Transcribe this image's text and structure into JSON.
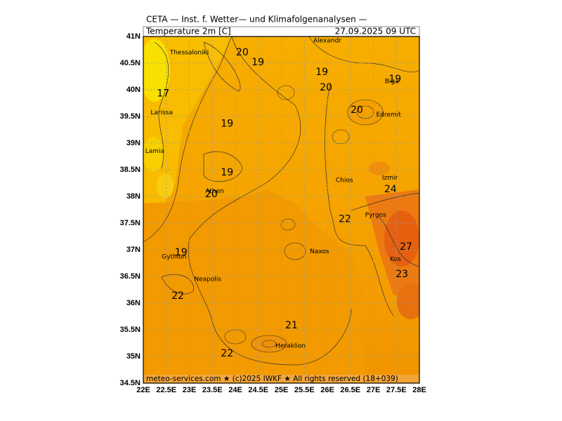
{
  "header": {
    "title": "CETA — Inst. f. Wetter— und Klimafolgenanalysen —",
    "field": "Temperature 2m [C]",
    "time": "27.09.2025 09 UTC"
  },
  "footer": "meteo-services.com ★ (c)2025 IWKF ★ All rights reserved (18+039)",
  "map": {
    "xlim": [
      22,
      28
    ],
    "ylim": [
      34.5,
      41
    ],
    "xticks": [
      {
        "value": 22,
        "label": "22E"
      },
      {
        "value": 22.5,
        "label": "22.5E"
      },
      {
        "value": 23,
        "label": "23E"
      },
      {
        "value": 23.5,
        "label": "23.5E"
      },
      {
        "value": 24,
        "label": "24E"
      },
      {
        "value": 24.5,
        "label": "24.5E"
      },
      {
        "value": 25,
        "label": "25E"
      },
      {
        "value": 25.5,
        "label": "25.5E"
      },
      {
        "value": 26,
        "label": "26E"
      },
      {
        "value": 26.5,
        "label": "26.5E"
      },
      {
        "value": 27,
        "label": "27E"
      },
      {
        "value": 27.5,
        "label": "27.5E"
      },
      {
        "value": 28,
        "label": "28E"
      }
    ],
    "yticks": [
      {
        "value": 41,
        "label": "41N"
      },
      {
        "value": 40.5,
        "label": "40.5N"
      },
      {
        "value": 40,
        "label": "40N"
      },
      {
        "value": 39.5,
        "label": "39.5N"
      },
      {
        "value": 39,
        "label": "39N"
      },
      {
        "value": 38.5,
        "label": "38.5N"
      },
      {
        "value": 38,
        "label": "38N"
      },
      {
        "value": 37.5,
        "label": "37.5N"
      },
      {
        "value": 37,
        "label": "37N"
      },
      {
        "value": 36.5,
        "label": "36.5N"
      },
      {
        "value": 36,
        "label": "36N"
      },
      {
        "value": 35.5,
        "label": "35.5N"
      },
      {
        "value": 35,
        "label": "35N"
      },
      {
        "value": 34.5,
        "label": "34.5N"
      }
    ],
    "cities": [
      {
        "name": "Thessaloniki",
        "lon": 23.0,
        "lat": 40.7
      },
      {
        "name": "Larissa",
        "lon": 22.4,
        "lat": 39.57
      },
      {
        "name": "Lamia",
        "lon": 22.25,
        "lat": 38.85
      },
      {
        "name": "Athen",
        "lon": 23.55,
        "lat": 38.1
      },
      {
        "name": "Gythion",
        "lon": 22.67,
        "lat": 36.87
      },
      {
        "name": "Neapolis",
        "lon": 23.4,
        "lat": 36.45
      },
      {
        "name": "Heraklion",
        "lon": 25.2,
        "lat": 35.2
      },
      {
        "name": "Naxos",
        "lon": 25.83,
        "lat": 36.97
      },
      {
        "name": "Chios",
        "lon": 26.37,
        "lat": 38.3
      },
      {
        "name": "Izmir",
        "lon": 27.36,
        "lat": 38.35
      },
      {
        "name": "Pyrgos",
        "lon": 27.05,
        "lat": 37.65
      },
      {
        "name": "Kos",
        "lon": 27.48,
        "lat": 36.82
      },
      {
        "name": "Edremit",
        "lon": 27.33,
        "lat": 39.53
      },
      {
        "name": "Biga",
        "lon": 27.4,
        "lat": 40.16
      },
      {
        "name": "Alexandr",
        "lon": 26.0,
        "lat": 40.92
      }
    ],
    "contour_labels": [
      {
        "value": 20,
        "lon": 24.15,
        "lat": 40.7
      },
      {
        "value": 19,
        "lon": 24.49,
        "lat": 40.51
      },
      {
        "value": 17,
        "lon": 22.43,
        "lat": 39.93
      },
      {
        "value": 19,
        "lon": 25.88,
        "lat": 40.33
      },
      {
        "value": 20,
        "lon": 25.97,
        "lat": 40.04
      },
      {
        "value": 19,
        "lon": 27.47,
        "lat": 40.2
      },
      {
        "value": 20,
        "lon": 26.64,
        "lat": 39.62
      },
      {
        "value": 19,
        "lon": 23.82,
        "lat": 39.36
      },
      {
        "value": 19,
        "lon": 23.82,
        "lat": 38.45
      },
      {
        "value": 20,
        "lon": 23.48,
        "lat": 38.04
      },
      {
        "value": 24,
        "lon": 27.37,
        "lat": 38.13
      },
      {
        "value": 22,
        "lon": 26.38,
        "lat": 37.57
      },
      {
        "value": 27,
        "lon": 27.71,
        "lat": 37.05
      },
      {
        "value": 19,
        "lon": 22.82,
        "lat": 36.95
      },
      {
        "value": 23,
        "lon": 27.62,
        "lat": 36.54
      },
      {
        "value": 22,
        "lon": 22.75,
        "lat": 36.13
      },
      {
        "value": 21,
        "lon": 25.22,
        "lat": 35.58
      },
      {
        "value": 22,
        "lon": 23.82,
        "lat": 35.05
      }
    ]
  }
}
